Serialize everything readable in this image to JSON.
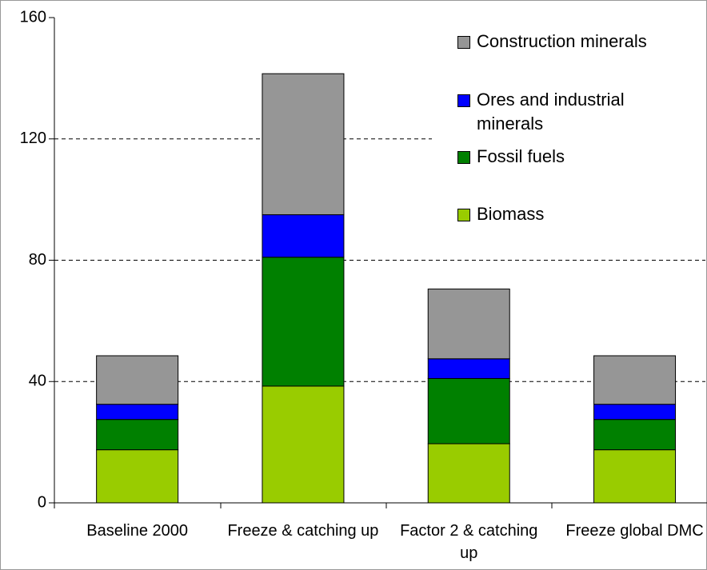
{
  "chart_data": {
    "type": "stacked_bar",
    "categories": [
      "Baseline 2000",
      "Freeze & catching up",
      "Factor 2 & catching up",
      "Freeze global DMC"
    ],
    "series": [
      {
        "name": "Biomass",
        "color": "#99cc00",
        "values": [
          17.5,
          38.5,
          19.5,
          17.5
        ]
      },
      {
        "name": "Fossil fuels",
        "color": "#008000",
        "values": [
          10,
          42.5,
          21.5,
          10
        ]
      },
      {
        "name": "Ores and industrial minerals",
        "color": "#0000ff",
        "values": [
          5,
          14,
          6.5,
          5
        ]
      },
      {
        "name": "Construction minerals",
        "color": "#969696",
        "values": [
          16,
          46.5,
          23,
          16
        ]
      }
    ],
    "ylim": [
      0,
      160
    ],
    "yticks": [
      0,
      40,
      80,
      120,
      160
    ],
    "grid": true
  }
}
